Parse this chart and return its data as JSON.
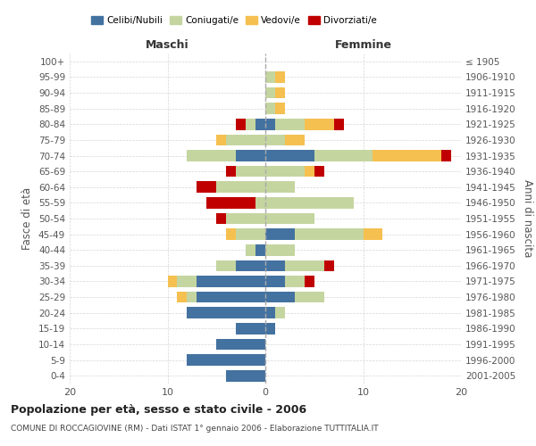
{
  "age_groups": [
    "0-4",
    "5-9",
    "10-14",
    "15-19",
    "20-24",
    "25-29",
    "30-34",
    "35-39",
    "40-44",
    "45-49",
    "50-54",
    "55-59",
    "60-64",
    "65-69",
    "70-74",
    "75-79",
    "80-84",
    "85-89",
    "90-94",
    "95-99",
    "100+"
  ],
  "birth_years": [
    "2001-2005",
    "1996-2000",
    "1991-1995",
    "1986-1990",
    "1981-1985",
    "1976-1980",
    "1971-1975",
    "1966-1970",
    "1961-1965",
    "1956-1960",
    "1951-1955",
    "1946-1950",
    "1941-1945",
    "1936-1940",
    "1931-1935",
    "1926-1930",
    "1921-1925",
    "1916-1920",
    "1911-1915",
    "1906-1910",
    "≤ 1905"
  ],
  "colors": {
    "celibi": "#4472A0",
    "coniugati": "#C5D5A0",
    "vedovi": "#F5C050",
    "divorziati": "#C00000"
  },
  "maschi": {
    "celibi": [
      4,
      8,
      5,
      3,
      8,
      7,
      7,
      3,
      1,
      0,
      0,
      0,
      0,
      0,
      3,
      0,
      1,
      0,
      0,
      0,
      0
    ],
    "coniugati": [
      0,
      0,
      0,
      0,
      0,
      1,
      2,
      2,
      1,
      3,
      4,
      1,
      5,
      3,
      5,
      4,
      1,
      0,
      0,
      0,
      0
    ],
    "vedovi": [
      0,
      0,
      0,
      0,
      0,
      1,
      1,
      0,
      0,
      1,
      0,
      0,
      0,
      0,
      0,
      1,
      0,
      0,
      0,
      0,
      0
    ],
    "divorziati": [
      0,
      0,
      0,
      0,
      0,
      0,
      0,
      0,
      0,
      0,
      1,
      5,
      2,
      1,
      0,
      0,
      1,
      0,
      0,
      0,
      0
    ]
  },
  "femmine": {
    "nubili": [
      0,
      0,
      0,
      1,
      1,
      3,
      2,
      2,
      0,
      3,
      0,
      0,
      0,
      0,
      5,
      0,
      1,
      0,
      0,
      0,
      0
    ],
    "coniugate": [
      0,
      0,
      0,
      0,
      1,
      3,
      2,
      4,
      3,
      7,
      5,
      9,
      3,
      4,
      6,
      2,
      3,
      1,
      1,
      1,
      0
    ],
    "vedove": [
      0,
      0,
      0,
      0,
      0,
      0,
      0,
      0,
      0,
      2,
      0,
      0,
      0,
      1,
      7,
      2,
      3,
      1,
      1,
      1,
      0
    ],
    "divorziate": [
      0,
      0,
      0,
      0,
      0,
      0,
      1,
      1,
      0,
      0,
      0,
      0,
      0,
      1,
      1,
      0,
      1,
      0,
      0,
      0,
      0
    ]
  },
  "xlim": [
    -20,
    20
  ],
  "title": "Popolazione per età, sesso e stato civile - 2006",
  "subtitle": "COMUNE DI ROCCAGIOVINE (RM) - Dati ISTAT 1° gennaio 2006 - Elaborazione TUTTITALIA.IT",
  "ylabel_left": "Fasce di età",
  "ylabel_right": "Anni di nascita",
  "xlabel_maschi": "Maschi",
  "xlabel_femmine": "Femmine",
  "legend_labels": [
    "Celibi/Nubili",
    "Coniugati/e",
    "Vedovi/e",
    "Divorziati/e"
  ],
  "background_color": "#ffffff",
  "grid_color": "#cccccc"
}
